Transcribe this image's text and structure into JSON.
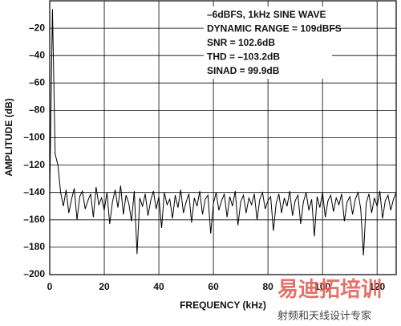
{
  "chart_data": {
    "type": "line",
    "annotations": [
      "–6dBFS, 1kHz SINE WAVE",
      "DYNAMIC RANGE = 109dBFS",
      "SNR = 102.6dB",
      "THD = –103.2dB",
      "SINAD = 99.9dB"
    ],
    "xlabel": "FREQUENCY (kHz)",
    "ylabel": "AMPLITUDE (dB)",
    "x": [
      0,
      1,
      2,
      3,
      4,
      5,
      6,
      7,
      8,
      9,
      10,
      11,
      12,
      13,
      14,
      15,
      16,
      17,
      18,
      19,
      20,
      21,
      22,
      23,
      24,
      25,
      26,
      27,
      28,
      29,
      30,
      31,
      32,
      33,
      34,
      35,
      36,
      37,
      38,
      39,
      40,
      41,
      42,
      43,
      44,
      45,
      46,
      47,
      48,
      49,
      50,
      51,
      52,
      53,
      54,
      55,
      56,
      57,
      58,
      59,
      60,
      61,
      62,
      63,
      64,
      65,
      66,
      67,
      68,
      69,
      70,
      71,
      72,
      73,
      74,
      75,
      76,
      77,
      78,
      79,
      80,
      81,
      82,
      83,
      84,
      85,
      86,
      87,
      88,
      89,
      90,
      91,
      92,
      93,
      94,
      95,
      96,
      97,
      98,
      99,
      100,
      101,
      102,
      103,
      104,
      105,
      106,
      107,
      108,
      109,
      110,
      111,
      112,
      113,
      114,
      115,
      116,
      117,
      118,
      119,
      120,
      121,
      122,
      123,
      124,
      125,
      126,
      127
    ],
    "values": [
      -142,
      -6,
      -112,
      -120,
      -140,
      -150,
      -138,
      -155,
      -145,
      -137,
      -160,
      -143,
      -139,
      -152,
      -146,
      -141,
      -158,
      -136,
      -149,
      -144,
      -153,
      -140,
      -163,
      -147,
      -138,
      -151,
      -135,
      -156,
      -142,
      -148,
      -161,
      -139,
      -185,
      -144,
      -150,
      -141,
      -157,
      -146,
      -139,
      -152,
      -143,
      -166,
      -140,
      -149,
      -145,
      -159,
      -142,
      -151,
      -138,
      -155,
      -147,
      -141,
      -162,
      -144,
      -150,
      -139,
      -156,
      -145,
      -142,
      -170,
      -148,
      -140,
      -153,
      -146,
      -141,
      -158,
      -143,
      -150,
      -139,
      -164,
      -147,
      -142,
      -155,
      -144,
      -149,
      -141,
      -160,
      -145,
      -140,
      -152,
      -146,
      -143,
      -168,
      -148,
      -141,
      -155,
      -144,
      -150,
      -139,
      -157,
      -146,
      -142,
      -163,
      -147,
      -140,
      -153,
      -145,
      -172,
      -143,
      -151,
      -140,
      -158,
      -146,
      -142,
      -154,
      -144,
      -149,
      -141,
      -161,
      -147,
      -143,
      -156,
      -145,
      -140,
      -152,
      -186,
      -148,
      -141,
      -155,
      -144,
      -150,
      -139,
      -159,
      -146,
      -142,
      -153,
      -145,
      -140
    ],
    "color": "#000000",
    "xlim": [
      0,
      127
    ],
    "xticks": [
      0,
      20,
      40,
      60,
      80,
      100,
      120
    ],
    "ylim": [
      -200,
      0
    ],
    "yticks": [
      {
        "value": -20,
        "label": "–20"
      },
      {
        "value": -40,
        "label": "–40"
      },
      {
        "value": -60,
        "label": "–60"
      },
      {
        "value": -80,
        "label": "–80"
      },
      {
        "value": -100,
        "label": "–100"
      },
      {
        "value": -120,
        "label": "–120"
      },
      {
        "value": -140,
        "label": "–140"
      },
      {
        "value": -160,
        "label": "–160"
      },
      {
        "value": -180,
        "label": "–180"
      },
      {
        "value": -200,
        "label": "–200"
      }
    ],
    "grid": true
  },
  "watermark": {
    "title": "易迪拓培训",
    "subtitle": "射频和天线设计专家"
  }
}
